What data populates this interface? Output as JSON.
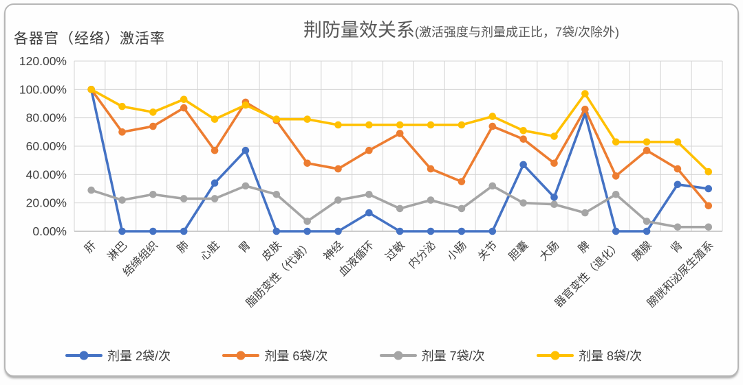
{
  "header": {
    "title_main": "荆防量效关系",
    "title_sub": "(激活强度与剂量成正比，7袋/次除外)",
    "y_axis_title": "各器官（经络）激活率"
  },
  "chart_data": {
    "type": "line",
    "title": "荆防量效关系(激活强度与剂量成正比，7袋/次除外)",
    "y_axis_label": "各器官（经络）激活率",
    "unit": "%",
    "ylim": [
      0,
      120
    ],
    "y_tick_step": 20,
    "y_ticks": [
      "120.00%",
      "100.00%",
      "80.00%",
      "60.00%",
      "40.00%",
      "20.00%",
      "0.00%"
    ],
    "grid": true,
    "legend_position": "bottom",
    "categories": [
      "肝",
      "淋巴",
      "结缔组织",
      "肺",
      "心脏",
      "胃",
      "皮肤",
      "脂肪变性（代谢）",
      "神经",
      "血液循环",
      "过敏",
      "内分泌",
      "小肠",
      "关节",
      "胆囊",
      "大肠",
      "脾",
      "器官变性（退化）",
      "胰腺",
      "肾",
      "膀胱和泌尿生殖系"
    ],
    "series": [
      {
        "name": "剂量 2袋/次",
        "color": "#4472C4",
        "values": [
          100,
          0,
          0,
          0,
          34,
          57,
          0,
          0,
          0,
          13,
          0,
          0,
          0,
          0,
          47,
          24,
          83,
          0,
          0,
          33,
          30
        ]
      },
      {
        "name": "剂量 6袋/次",
        "color": "#ED7D31",
        "values": [
          100,
          70,
          74,
          87,
          57,
          91,
          78,
          48,
          44,
          57,
          69,
          44,
          35,
          74,
          65,
          48,
          86,
          39,
          57,
          44,
          18
        ]
      },
      {
        "name": "剂量 7袋/次",
        "color": "#A5A5A5",
        "values": [
          29,
          22,
          26,
          23,
          23,
          32,
          26,
          7,
          22,
          26,
          16,
          22,
          16,
          32,
          20,
          19,
          13,
          26,
          7,
          3,
          3
        ]
      },
      {
        "name": "剂量 8袋/次",
        "color": "#FFC000",
        "values": [
          100,
          88,
          84,
          93,
          79,
          89,
          79,
          79,
          75,
          75,
          75,
          75,
          75,
          81,
          71,
          67,
          97,
          63,
          63,
          63,
          42
        ]
      }
    ]
  }
}
